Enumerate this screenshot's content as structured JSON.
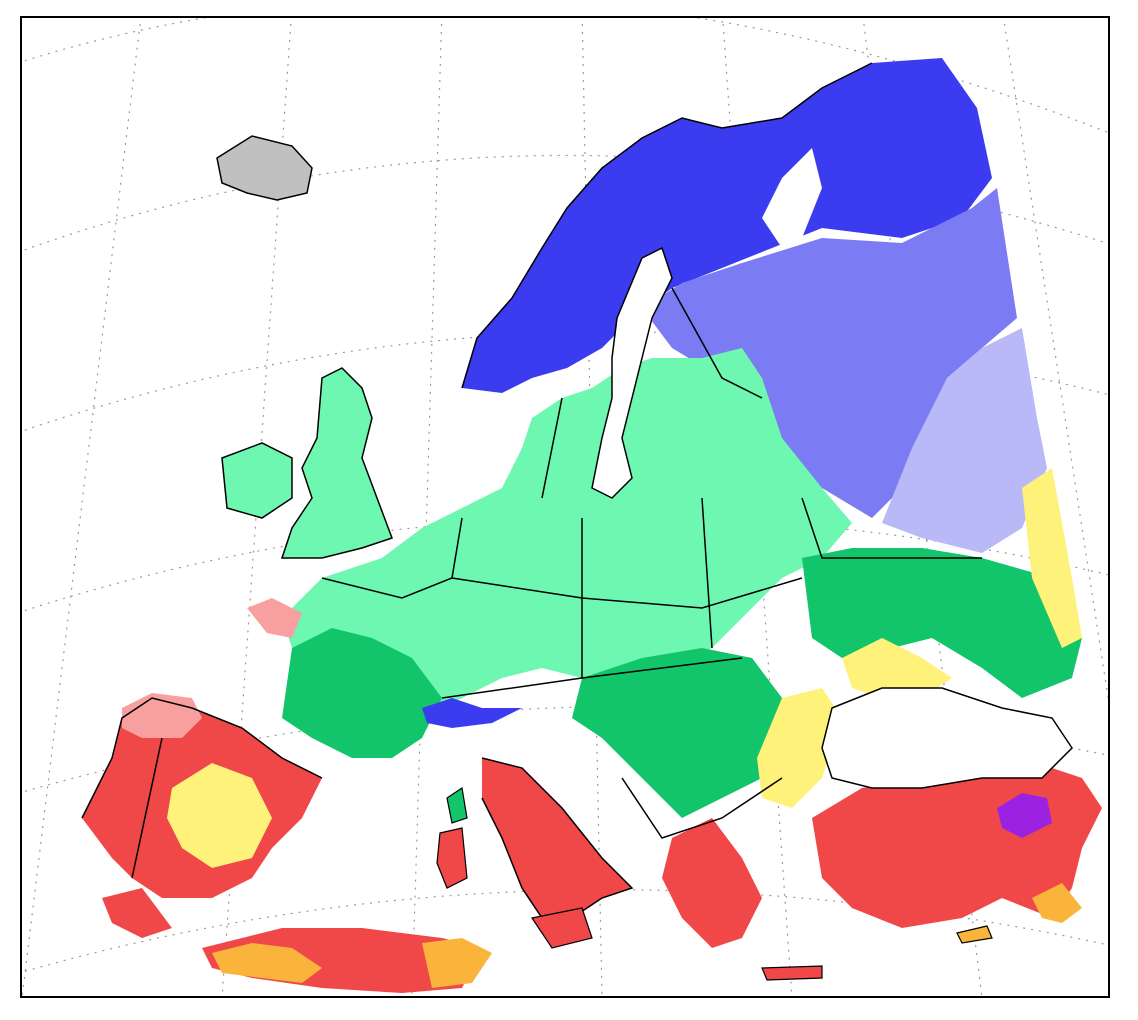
{
  "map": {
    "projection": "conic",
    "background": "#ffffff",
    "frame_color": "#000000",
    "graticule_color": "#9a9a9a",
    "border_color": "#000000"
  },
  "legend_colors": {
    "polar_tundra": "#3b3bef",
    "cold_boreal": "#7b7bf3",
    "cold_continental": "#b9b9f7",
    "temperate_oceanic": "#6ef7b0",
    "temperate_continental": "#12c56b",
    "mediterranean_hot": "#f04848",
    "mediterranean_warm": "#f8a0a0",
    "steppe": "#fff27a",
    "arid": "#fbb43b",
    "highland": "#9b22e0",
    "ice": "#c0c0c0"
  }
}
